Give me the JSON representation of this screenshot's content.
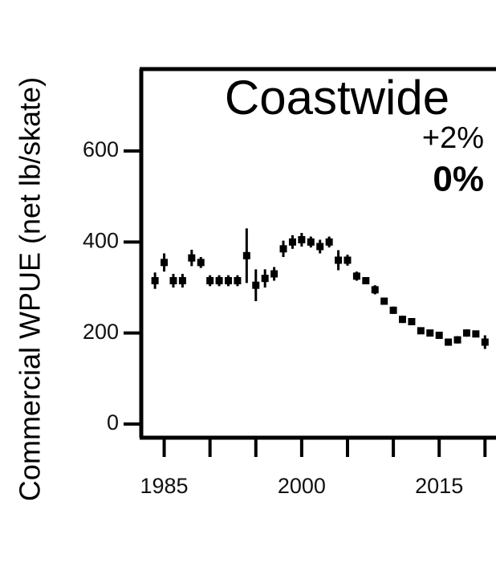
{
  "chart_data": {
    "type": "scatter",
    "title": "Coastwide",
    "annotations": [
      {
        "text": "+2%",
        "color": "#000000",
        "bold": false
      },
      {
        "text": "0%",
        "color": "#ff0000",
        "bold": true
      }
    ],
    "y_label": "Commercial WPUE (net lb/skate)",
    "x": [
      1984,
      1985,
      1986,
      1987,
      1988,
      1989,
      1990,
      1991,
      1992,
      1993,
      1994,
      1995,
      1996,
      1997,
      1998,
      1999,
      2000,
      2001,
      2002,
      2003,
      2004,
      2005,
      2006,
      2007,
      2008,
      2009,
      2010,
      2011,
      2012,
      2013,
      2014,
      2015,
      2016,
      2017,
      2018,
      2019,
      2020
    ],
    "values": [
      315,
      355,
      315,
      315,
      365,
      355,
      315,
      315,
      315,
      315,
      370,
      305,
      320,
      330,
      385,
      400,
      405,
      400,
      390,
      400,
      360,
      360,
      325,
      315,
      295,
      270,
      250,
      230,
      225,
      205,
      200,
      195,
      180,
      185,
      200,
      198,
      180
    ],
    "errors": [
      18,
      20,
      15,
      15,
      18,
      12,
      12,
      12,
      12,
      12,
      60,
      35,
      20,
      15,
      18,
      15,
      15,
      12,
      15,
      12,
      22,
      12,
      10,
      8,
      10,
      8,
      8,
      8,
      6,
      6,
      6,
      8,
      6,
      8,
      8,
      6,
      15
    ],
    "color": "#000000",
    "xlim": [
      1982.5,
      2021.2
    ],
    "ylim": [
      -30,
      780
    ],
    "xticks": [
      1985,
      2000,
      2015
    ],
    "xminorticks": [
      1990,
      1995,
      2005,
      2010,
      2020
    ],
    "yticks": [
      0,
      200,
      400,
      600
    ]
  }
}
